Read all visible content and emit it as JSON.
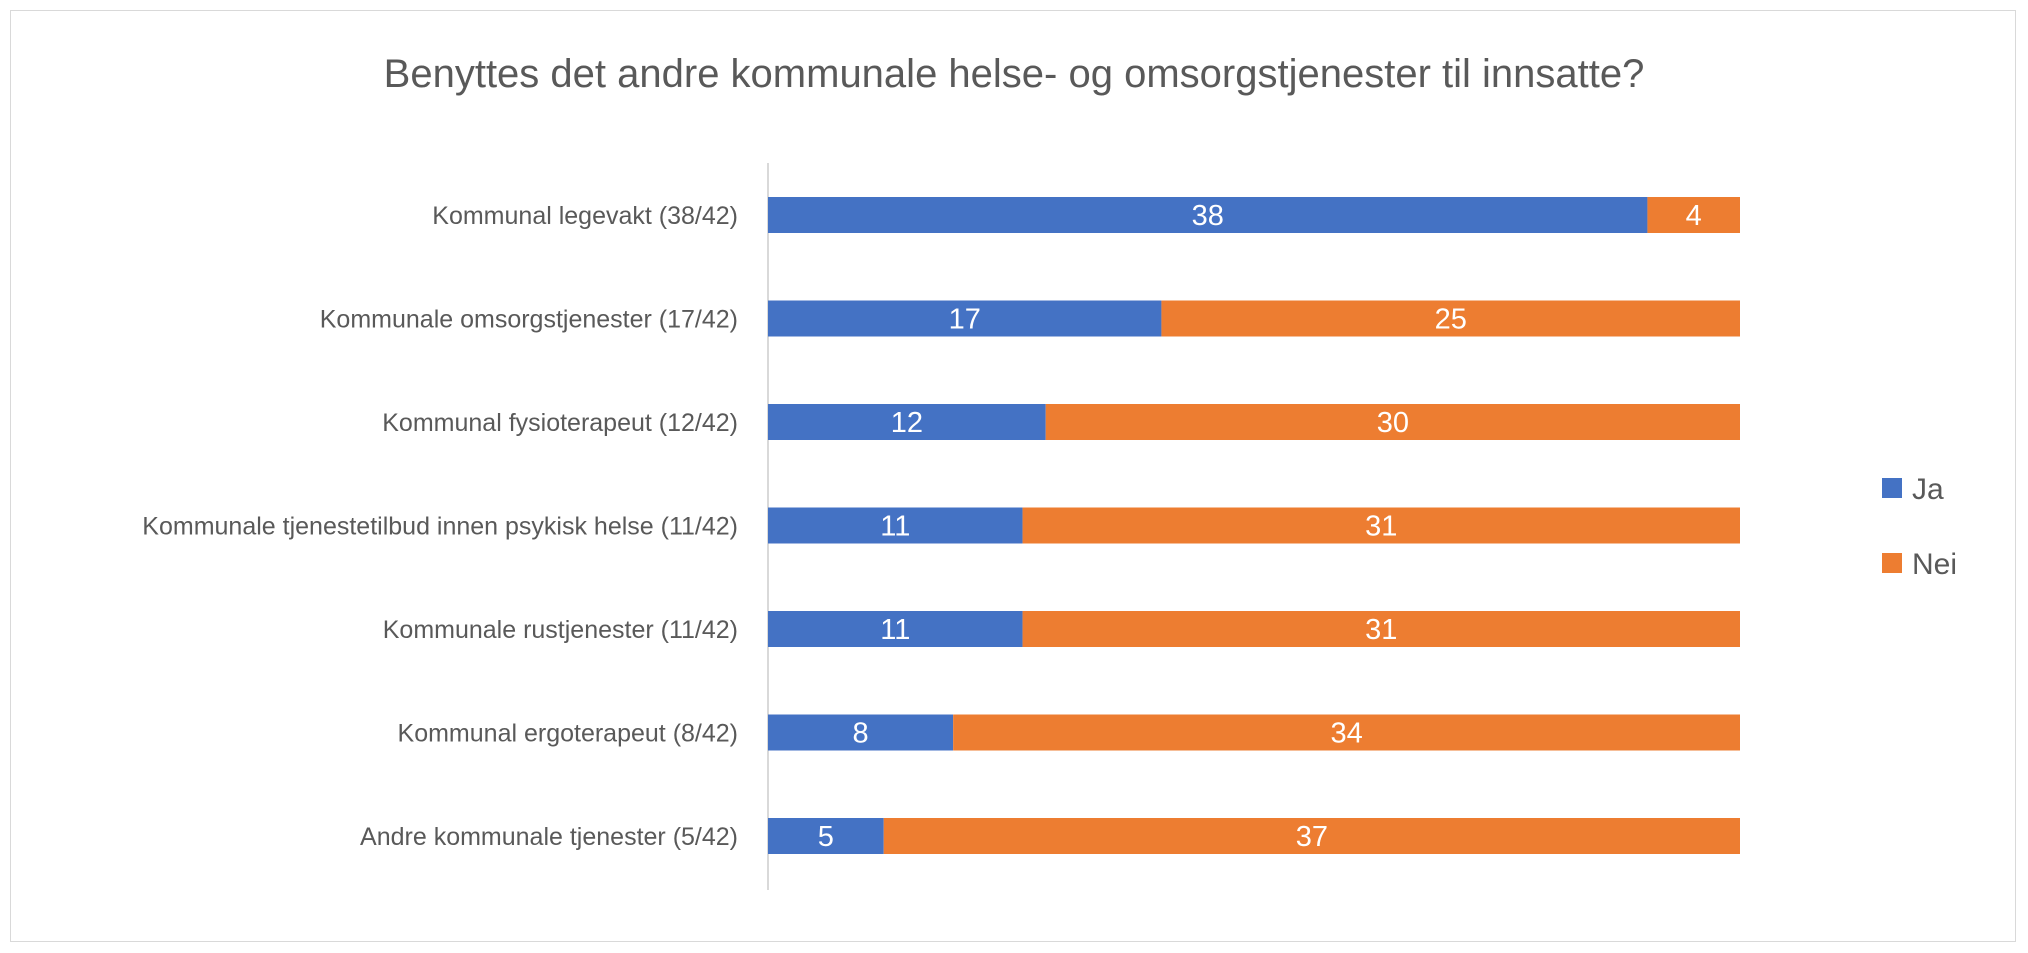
{
  "chart_data": {
    "type": "bar",
    "orientation": "horizontal",
    "stacked": true,
    "title": "Benyttes det andre kommunale helse- og omsorgstjenester til innsatte?",
    "categories": [
      "Kommunal legevakt (38/42)",
      "Kommunale omsorgstjenester (17/42)",
      "Kommunal fysioterapeut (12/42)",
      "Kommunale tjenestetilbud innen psykisk helse (11/42)",
      "Kommunale rustjenester (11/42)",
      "Kommunal ergoterapeut (8/42)",
      "Andre kommunale tjenester (5/42)"
    ],
    "series": [
      {
        "name": "Ja",
        "color": "#4472C4",
        "values": [
          38,
          17,
          12,
          11,
          11,
          8,
          5
        ]
      },
      {
        "name": "Nei",
        "color": "#ED7D31",
        "values": [
          4,
          25,
          30,
          31,
          31,
          34,
          37
        ]
      }
    ],
    "xlim": [
      0,
      42
    ],
    "grid": false,
    "data_labels": true,
    "legend": "right"
  }
}
